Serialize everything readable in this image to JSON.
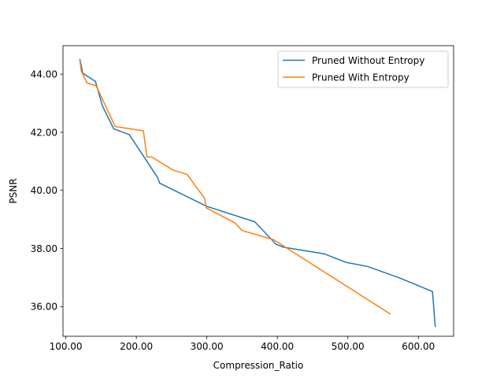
{
  "chart_data": {
    "type": "line",
    "title": "",
    "xlabel": "Compression_Ratio",
    "ylabel": "PSNR",
    "xlim": [
      96,
      650
    ],
    "ylim": [
      34.98,
      44.98
    ],
    "xticks": [
      100,
      200,
      300,
      400,
      500,
      600
    ],
    "yticks": [
      36,
      38,
      40,
      42,
      44
    ],
    "tick_format_decimals": 2,
    "grid": false,
    "legend_position": "top-right",
    "series": [
      {
        "name": "Pruned Without Entropy",
        "color": "#1f77b4",
        "points": [
          [
            120,
            44.5
          ],
          [
            124,
            44.03
          ],
          [
            142,
            43.75
          ],
          [
            152,
            42.9
          ],
          [
            168,
            42.12
          ],
          [
            190,
            41.92
          ],
          [
            230,
            40.45
          ],
          [
            233,
            40.25
          ],
          [
            300,
            39.45
          ],
          [
            368,
            38.92
          ],
          [
            398,
            38.15
          ],
          [
            408,
            38.05
          ],
          [
            440,
            37.92
          ],
          [
            466,
            37.82
          ],
          [
            498,
            37.52
          ],
          [
            528,
            37.38
          ],
          [
            572,
            37.0
          ],
          [
            620,
            36.52
          ],
          [
            624,
            35.32
          ]
        ]
      },
      {
        "name": "Pruned With Entropy",
        "color": "#ff7f0e",
        "points": [
          [
            120,
            44.45
          ],
          [
            122,
            44.1
          ],
          [
            130,
            43.7
          ],
          [
            143,
            43.6
          ],
          [
            170,
            42.2
          ],
          [
            210,
            42.05
          ],
          [
            215,
            41.15
          ],
          [
            222,
            41.15
          ],
          [
            252,
            40.7
          ],
          [
            272,
            40.55
          ],
          [
            297,
            39.72
          ],
          [
            299,
            39.4
          ],
          [
            340,
            38.88
          ],
          [
            350,
            38.62
          ],
          [
            395,
            38.3
          ],
          [
            560,
            35.75
          ]
        ]
      }
    ]
  }
}
